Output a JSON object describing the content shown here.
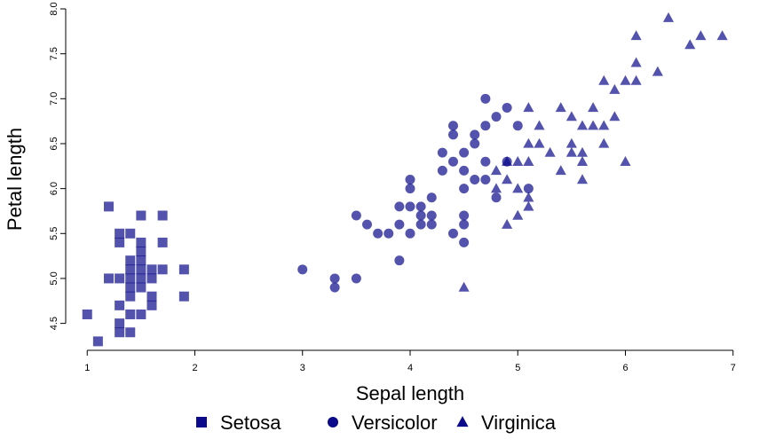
{
  "chart_data": {
    "type": "scatter",
    "xlabel": "Sepal length",
    "ylabel": "Petal length",
    "xlim": [
      0.8,
      7.2
    ],
    "ylim": [
      4.2,
      8.0
    ],
    "x_ticks": [
      1,
      2,
      3,
      4,
      5,
      6,
      7
    ],
    "y_ticks": [
      4.5,
      5.0,
      5.5,
      6.0,
      6.5,
      7.0,
      7.5,
      8.0
    ],
    "x_tick_labels": [
      "1",
      "2",
      "3",
      "4",
      "5",
      "6",
      "7"
    ],
    "y_tick_labels": [
      "4.5",
      "5.0",
      "5.5",
      "6.0",
      "6.5",
      "7.0",
      "7.5",
      "8.0"
    ],
    "grid": false,
    "legend_position": "bottom",
    "point_color": "#0a0a8a",
    "series": [
      {
        "name": "Setosa",
        "marker": "square",
        "points": [
          [
            1.0,
            4.6
          ],
          [
            1.1,
            4.3
          ],
          [
            1.2,
            5.8
          ],
          [
            1.2,
            5.0
          ],
          [
            1.3,
            5.5
          ],
          [
            1.3,
            5.4
          ],
          [
            1.3,
            5.0
          ],
          [
            1.3,
            4.7
          ],
          [
            1.3,
            4.5
          ],
          [
            1.3,
            4.4
          ],
          [
            1.4,
            5.5
          ],
          [
            1.4,
            5.2
          ],
          [
            1.4,
            5.1
          ],
          [
            1.4,
            5.0
          ],
          [
            1.4,
            4.9
          ],
          [
            1.4,
            4.8
          ],
          [
            1.4,
            4.6
          ],
          [
            1.4,
            4.4
          ],
          [
            1.5,
            5.7
          ],
          [
            1.5,
            5.4
          ],
          [
            1.5,
            5.3
          ],
          [
            1.5,
            5.2
          ],
          [
            1.5,
            5.1
          ],
          [
            1.5,
            5.0
          ],
          [
            1.5,
            4.9
          ],
          [
            1.5,
            4.6
          ],
          [
            1.6,
            5.1
          ],
          [
            1.6,
            5.0
          ],
          [
            1.6,
            4.8
          ],
          [
            1.6,
            4.7
          ],
          [
            1.7,
            5.7
          ],
          [
            1.7,
            5.4
          ],
          [
            1.7,
            5.1
          ],
          [
            1.9,
            5.1
          ],
          [
            1.9,
            4.8
          ]
        ]
      },
      {
        "name": "Versicolor",
        "marker": "circle",
        "points": [
          [
            3.0,
            5.1
          ],
          [
            3.3,
            5.0
          ],
          [
            3.3,
            4.9
          ],
          [
            3.5,
            5.7
          ],
          [
            3.5,
            5.0
          ],
          [
            3.6,
            5.6
          ],
          [
            3.7,
            5.5
          ],
          [
            3.8,
            5.5
          ],
          [
            3.9,
            5.8
          ],
          [
            3.9,
            5.6
          ],
          [
            3.9,
            5.2
          ],
          [
            4.0,
            6.1
          ],
          [
            4.0,
            6.0
          ],
          [
            4.0,
            5.8
          ],
          [
            4.0,
            5.5
          ],
          [
            4.1,
            5.8
          ],
          [
            4.1,
            5.7
          ],
          [
            4.1,
            5.6
          ],
          [
            4.2,
            5.9
          ],
          [
            4.2,
            5.7
          ],
          [
            4.2,
            5.6
          ],
          [
            4.3,
            6.4
          ],
          [
            4.3,
            6.2
          ],
          [
            4.4,
            6.7
          ],
          [
            4.4,
            6.6
          ],
          [
            4.4,
            6.3
          ],
          [
            4.4,
            5.5
          ],
          [
            4.5,
            6.4
          ],
          [
            4.5,
            6.2
          ],
          [
            4.5,
            6.0
          ],
          [
            4.5,
            5.7
          ],
          [
            4.5,
            5.6
          ],
          [
            4.5,
            5.4
          ],
          [
            4.6,
            6.6
          ],
          [
            4.6,
            6.5
          ],
          [
            4.6,
            6.1
          ],
          [
            4.7,
            7.0
          ],
          [
            4.7,
            6.7
          ],
          [
            4.7,
            6.3
          ],
          [
            4.7,
            6.1
          ],
          [
            4.8,
            6.8
          ],
          [
            4.8,
            5.9
          ],
          [
            4.9,
            6.9
          ],
          [
            4.9,
            6.3
          ],
          [
            5.0,
            6.7
          ],
          [
            5.1,
            6.0
          ]
        ]
      },
      {
        "name": "Virginica",
        "marker": "triangle",
        "points": [
          [
            4.5,
            4.9
          ],
          [
            4.8,
            6.2
          ],
          [
            4.8,
            6.0
          ],
          [
            4.9,
            6.3
          ],
          [
            4.9,
            6.1
          ],
          [
            4.9,
            5.6
          ],
          [
            5.0,
            6.3
          ],
          [
            5.0,
            6.0
          ],
          [
            5.0,
            5.7
          ],
          [
            5.1,
            6.9
          ],
          [
            5.1,
            6.5
          ],
          [
            5.1,
            6.3
          ],
          [
            5.1,
            5.9
          ],
          [
            5.1,
            5.8
          ],
          [
            5.2,
            6.7
          ],
          [
            5.2,
            6.5
          ],
          [
            5.3,
            6.4
          ],
          [
            5.4,
            6.9
          ],
          [
            5.4,
            6.2
          ],
          [
            5.5,
            6.8
          ],
          [
            5.5,
            6.5
          ],
          [
            5.5,
            6.4
          ],
          [
            5.6,
            6.7
          ],
          [
            5.6,
            6.4
          ],
          [
            5.6,
            6.3
          ],
          [
            5.6,
            6.1
          ],
          [
            5.7,
            6.9
          ],
          [
            5.7,
            6.7
          ],
          [
            5.8,
            7.2
          ],
          [
            5.8,
            6.7
          ],
          [
            5.8,
            6.5
          ],
          [
            5.9,
            7.1
          ],
          [
            5.9,
            6.8
          ],
          [
            6.0,
            7.2
          ],
          [
            6.0,
            6.3
          ],
          [
            6.1,
            7.7
          ],
          [
            6.1,
            7.4
          ],
          [
            6.1,
            7.2
          ],
          [
            6.3,
            7.3
          ],
          [
            6.4,
            7.9
          ],
          [
            6.6,
            7.6
          ],
          [
            6.7,
            7.7
          ],
          [
            6.9,
            7.7
          ]
        ]
      }
    ]
  }
}
